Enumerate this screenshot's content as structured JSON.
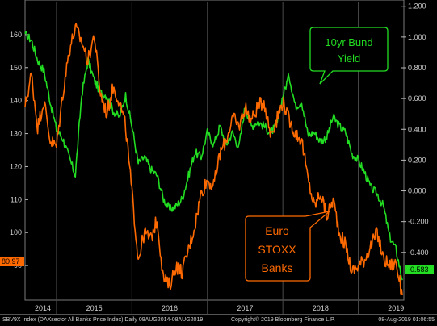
{
  "chart_data": {
    "type": "line",
    "title": "",
    "x_ticks": [
      "2014",
      "2015",
      "2016",
      "2017",
      "2018",
      "2019"
    ],
    "y_left": {
      "ticks": [
        90,
        100,
        110,
        120,
        130,
        140,
        150,
        160
      ],
      "range": [
        80,
        170
      ]
    },
    "y_right": {
      "ticks": [
        "1.200",
        "1.000",
        "0.800",
        "0.600",
        "0.400",
        "0.200",
        "0.000",
        "-0.200",
        "-0.400"
      ],
      "range": [
        -0.7,
        1.23
      ]
    },
    "series": [
      {
        "name": "10yr Bund Yield",
        "axis": "right",
        "color": "#22dd22",
        "last_value": "-0.583",
        "points": [
          [
            "2014-08",
            1.02
          ],
          [
            "2014-09",
            0.98
          ],
          [
            "2014-10",
            0.85
          ],
          [
            "2014-11",
            0.78
          ],
          [
            "2014-12",
            0.58
          ],
          [
            "2015-01",
            0.4
          ],
          [
            "2015-02",
            0.34
          ],
          [
            "2015-03",
            0.22
          ],
          [
            "2015-04",
            0.1
          ],
          [
            "2015-05",
            0.62
          ],
          [
            "2015-06",
            0.85
          ],
          [
            "2015-07",
            0.72
          ],
          [
            "2015-08",
            0.64
          ],
          [
            "2015-09",
            0.62
          ],
          [
            "2015-10",
            0.52
          ],
          [
            "2015-11",
            0.48
          ],
          [
            "2015-12",
            0.62
          ],
          [
            "2016-01",
            0.42
          ],
          [
            "2016-02",
            0.18
          ],
          [
            "2016-03",
            0.22
          ],
          [
            "2016-04",
            0.14
          ],
          [
            "2016-05",
            0.1
          ],
          [
            "2016-06",
            -0.05
          ],
          [
            "2016-07",
            -0.12
          ],
          [
            "2016-08",
            -0.1
          ],
          [
            "2016-09",
            -0.05
          ],
          [
            "2016-10",
            0.1
          ],
          [
            "2016-11",
            0.25
          ],
          [
            "2016-12",
            0.22
          ],
          [
            "2017-01",
            0.38
          ],
          [
            "2017-02",
            0.3
          ],
          [
            "2017-03",
            0.42
          ],
          [
            "2017-04",
            0.3
          ],
          [
            "2017-05",
            0.38
          ],
          [
            "2017-06",
            0.28
          ],
          [
            "2017-07",
            0.55
          ],
          [
            "2017-08",
            0.42
          ],
          [
            "2017-09",
            0.45
          ],
          [
            "2017-10",
            0.42
          ],
          [
            "2017-11",
            0.38
          ],
          [
            "2017-12",
            0.42
          ],
          [
            "2018-01",
            0.62
          ],
          [
            "2018-02",
            0.75
          ],
          [
            "2018-03",
            0.55
          ],
          [
            "2018-04",
            0.58
          ],
          [
            "2018-05",
            0.36
          ],
          [
            "2018-06",
            0.38
          ],
          [
            "2018-07",
            0.32
          ],
          [
            "2018-08",
            0.35
          ],
          [
            "2018-09",
            0.48
          ],
          [
            "2018-10",
            0.42
          ],
          [
            "2018-11",
            0.38
          ],
          [
            "2018-12",
            0.24
          ],
          [
            "2019-01",
            0.2
          ],
          [
            "2019-02",
            0.12
          ],
          [
            "2019-03",
            0.02
          ],
          [
            "2019-04",
            -0.02
          ],
          [
            "2019-05",
            -0.1
          ],
          [
            "2019-06",
            -0.3
          ],
          [
            "2019-07",
            -0.38
          ],
          [
            "2019-08",
            -0.58
          ]
        ]
      },
      {
        "name": "Euro STOXX Banks",
        "axis": "left",
        "color": "#ff6a00",
        "last_value": "80.97",
        "points": [
          [
            "2014-08",
            138
          ],
          [
            "2014-09",
            148
          ],
          [
            "2014-10",
            132
          ],
          [
            "2014-11",
            140
          ],
          [
            "2014-12",
            128
          ],
          [
            "2015-01",
            126
          ],
          [
            "2015-02",
            142
          ],
          [
            "2015-03",
            155
          ],
          [
            "2015-04",
            162
          ],
          [
            "2015-05",
            158
          ],
          [
            "2015-06",
            152
          ],
          [
            "2015-07",
            160
          ],
          [
            "2015-08",
            142
          ],
          [
            "2015-09",
            136
          ],
          [
            "2015-10",
            144
          ],
          [
            "2015-11",
            140
          ],
          [
            "2015-12",
            132
          ],
          [
            "2016-01",
            112
          ],
          [
            "2016-02",
            92
          ],
          [
            "2016-03",
            100
          ],
          [
            "2016-04",
            98
          ],
          [
            "2016-05",
            104
          ],
          [
            "2016-06",
            86
          ],
          [
            "2016-07",
            84
          ],
          [
            "2016-08",
            90
          ],
          [
            "2016-09",
            88
          ],
          [
            "2016-10",
            95
          ],
          [
            "2016-11",
            102
          ],
          [
            "2016-12",
            112
          ],
          [
            "2017-01",
            116
          ],
          [
            "2017-02",
            114
          ],
          [
            "2017-03",
            124
          ],
          [
            "2017-04",
            128
          ],
          [
            "2017-05",
            135
          ],
          [
            "2017-06",
            132
          ],
          [
            "2017-07",
            138
          ],
          [
            "2017-08",
            134
          ],
          [
            "2017-09",
            138
          ],
          [
            "2017-10",
            140
          ],
          [
            "2017-11",
            130
          ],
          [
            "2017-12",
            134
          ],
          [
            "2018-01",
            140
          ],
          [
            "2018-02",
            134
          ],
          [
            "2018-03",
            130
          ],
          [
            "2018-04",
            128
          ],
          [
            "2018-05",
            116
          ],
          [
            "2018-06",
            108
          ],
          [
            "2018-07",
            112
          ],
          [
            "2018-08",
            105
          ],
          [
            "2018-09",
            110
          ],
          [
            "2018-10",
            100
          ],
          [
            "2018-11",
            96
          ],
          [
            "2018-12",
            88
          ],
          [
            "2019-01",
            90
          ],
          [
            "2019-02",
            92
          ],
          [
            "2019-03",
            96
          ],
          [
            "2019-04",
            100
          ],
          [
            "2019-05",
            92
          ],
          [
            "2019-06",
            90
          ],
          [
            "2019-07",
            91
          ],
          [
            "2019-08",
            81
          ]
        ]
      }
    ],
    "annotations": [
      {
        "text": "10yr Bund Yield",
        "series": "10yr Bund Yield"
      },
      {
        "text": "Euro STOXX Banks",
        "series": "Euro STOXX Banks"
      }
    ]
  },
  "labels": {
    "bund_line1": "10yr Bund",
    "bund_line2": "Yield",
    "banks_line1": "Euro",
    "banks_line2": "STOXX",
    "banks_line3": "Banks",
    "left_last": "80.97",
    "right_last": "-0.583"
  },
  "footer": {
    "left": "SBV9X Index (DAXsector All Banks Price Index)  Daily 09AUG2014-08AUG2019",
    "center": "Copyright© 2019 Bloomberg Finance L.P.",
    "right": "08-Aug-2019 01:06:55"
  },
  "colors": {
    "background": "#000000",
    "green": "#22dd22",
    "orange": "#ff6a00"
  }
}
